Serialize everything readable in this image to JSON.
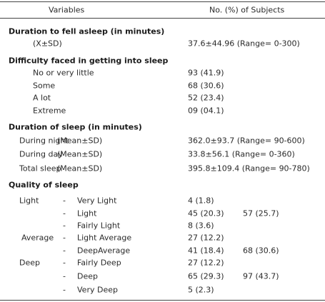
{
  "table": {
    "header": [
      "Variables",
      "No. (%) of Subjects"
    ],
    "sections": [
      {
        "title": "Duration to fell asleep (in minutes)",
        "rows": [
          {
            "label": "(X±SD)",
            "value": "37.6±44.96 (Range= 0-300)"
          }
        ]
      },
      {
        "title": "Difficulty faced in getting into sleep",
        "rows": [
          {
            "label": "No or very little",
            "value": "93 (41.9)"
          },
          {
            "label": "Some",
            "value": "68 (30.6)"
          },
          {
            "label": "A lot",
            "value": "52 (23.4)"
          },
          {
            "label": "Extreme",
            "value": "09 (04.1)"
          }
        ]
      },
      {
        "title": "Duration of sleep (in minutes)",
        "rows": [
          {
            "label": "During night",
            "stat": "(Mean±SD)",
            "value": "362.0±93.7 (Range= 90-600)"
          },
          {
            "label": "During day",
            "stat": "(Mean±SD)",
            "value": "33.8±56.1 (Range= 0-360)"
          },
          {
            "label": "Total sleep",
            "stat": "(Mean±SD)",
            "value": "395.8±109.4 (Range= 90-780)"
          }
        ]
      },
      {
        "title": "Quality of sleep",
        "rows": [
          {
            "group": "Light",
            "dash": "-",
            "label": "Very Light",
            "value": "4 (1.8)"
          },
          {
            "dash": "-",
            "label": "Light",
            "value": "45 (20.3)",
            "total": "57 (25.7)"
          },
          {
            "dash": "-",
            "label": "Fairly Light",
            "value": "8 (3.6)"
          },
          {
            "group": "Average",
            "dash": "-",
            "label": "Light Average",
            "value": "27 (12.2)"
          },
          {
            "dash": "-",
            "label": "DeepAverage",
            "value": "41 (18.4)",
            "total": "68 (30.6)"
          },
          {
            "group": "Deep",
            "dash": "-",
            "label": "Fairly Deep",
            "value": "27 (12.2)"
          },
          {
            "dash": "-",
            "label": "Deep",
            "value": "65 (29.3)",
            "total": "97 (43.7)"
          },
          {
            "dash": "-",
            "label": "Very Deep",
            "value": "5 (2.3)"
          }
        ]
      }
    ]
  }
}
